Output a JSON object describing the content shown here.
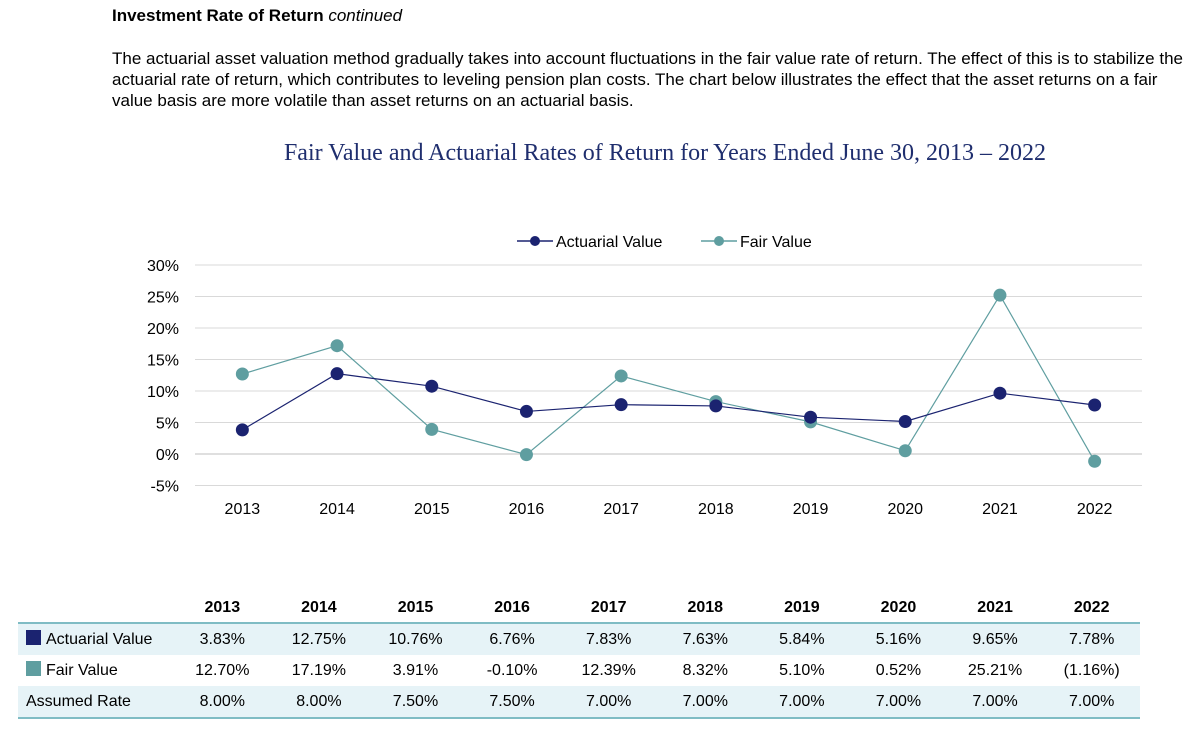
{
  "heading": {
    "bold": "Investment Rate of Return",
    "italic": "continued"
  },
  "paragraph": "The actuarial asset valuation method gradually takes into account fluctuations in the fair value rate of return. The effect of this is to stabilize the actuarial rate of return, which contributes to leveling pension plan costs. The chart below illustrates the effect that the asset returns on a fair value basis are more volatile than asset returns on an actuarial basis.",
  "colors": {
    "actuarial": "#1b2370",
    "fair": "#5f9ea0",
    "title": "#1f2e6e",
    "grid": "#d9d9d9",
    "band": "#e6f3f7",
    "rule": "#7fbcc4"
  },
  "chart_data": {
    "type": "line",
    "title": "Fair Value and Actuarial Rates of Return for Years Ended June 30, 2013 – 2022",
    "xlabel": "",
    "ylabel": "",
    "categories": [
      "2013",
      "2014",
      "2015",
      "2016",
      "2017",
      "2018",
      "2019",
      "2020",
      "2021",
      "2022"
    ],
    "ylim": [
      -5,
      30
    ],
    "yticks": [
      -5,
      0,
      5,
      10,
      15,
      20,
      25,
      30
    ],
    "ytick_labels": [
      "-5%",
      "0%",
      "5%",
      "10%",
      "15%",
      "20%",
      "25%",
      "30%"
    ],
    "grid": true,
    "legend_position": "top-center",
    "series": [
      {
        "name": "Actuarial Value",
        "color": "#1b2370",
        "values": [
          3.83,
          12.75,
          10.76,
          6.76,
          7.83,
          7.63,
          5.84,
          5.16,
          9.65,
          7.78
        ]
      },
      {
        "name": "Fair Value",
        "color": "#5f9ea0",
        "values": [
          12.7,
          17.19,
          3.91,
          -0.1,
          12.39,
          8.32,
          5.1,
          0.52,
          25.21,
          -1.16
        ]
      }
    ]
  },
  "table": {
    "headers": [
      "2013",
      "2014",
      "2015",
      "2016",
      "2017",
      "2018",
      "2019",
      "2020",
      "2021",
      "2022"
    ],
    "rows": [
      {
        "label": "Actuarial Value",
        "swatch": "#1b2370",
        "cells": [
          "3.83%",
          "12.75%",
          "10.76%",
          "6.76%",
          "7.83%",
          "7.63%",
          "5.84%",
          "5.16%",
          "9.65%",
          "7.78%"
        ]
      },
      {
        "label": "Fair Value",
        "swatch": "#5f9ea0",
        "cells": [
          "12.70%",
          "17.19%",
          "3.91%",
          "-0.10%",
          "12.39%",
          "8.32%",
          "5.10%",
          "0.52%",
          "25.21%",
          "(1.16%)"
        ]
      },
      {
        "label": "Assumed Rate",
        "cells": [
          "8.00%",
          "8.00%",
          "7.50%",
          "7.50%",
          "7.00%",
          "7.00%",
          "7.00%",
          "7.00%",
          "7.00%",
          "7.00%"
        ]
      }
    ]
  }
}
